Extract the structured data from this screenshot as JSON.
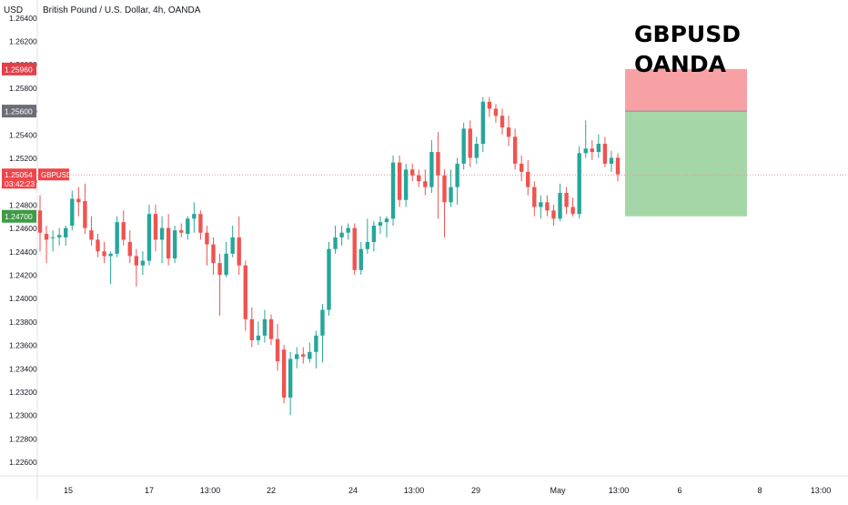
{
  "header": {
    "currency": "USD",
    "title": "British Pound / U.S. Dollar, 4h, OANDA"
  },
  "annotation_title": [
    "GBPUSD",
    "OANDA"
  ],
  "colors": {
    "up": "#26a69a",
    "down": "#ef5350",
    "target_zone": "#a5d6a7",
    "stop_zone": "#f7a1a5",
    "current_price_line": "#f08f92",
    "badge_stop": "#e0404a",
    "badge_entry": "#6b6e78",
    "badge_current": "#f0454a",
    "badge_target": "#3f9b45"
  },
  "chart_data": {
    "type": "candlestick",
    "title": "British Pound / U.S. Dollar, 4h, OANDA",
    "symbol": "GBPUSD",
    "ylim": [
      1.2248,
      1.2655
    ],
    "y_ticks": [
      1.264,
      1.262,
      1.26,
      1.258,
      1.256,
      1.254,
      1.252,
      1.25,
      1.248,
      1.246,
      1.244,
      1.242,
      1.24,
      1.238,
      1.236,
      1.234,
      1.232,
      1.23,
      1.228,
      1.226
    ],
    "x_ticks": [
      "15",
      "17",
      "13:00",
      "22",
      "24",
      "13:00",
      "29",
      "May",
      "13:00",
      "6",
      "8",
      "13:00"
    ],
    "candles": [
      {
        "o": 1.2475,
        "h": 1.2488,
        "l": 1.244,
        "c": 1.2456
      },
      {
        "o": 1.2455,
        "h": 1.2462,
        "l": 1.243,
        "c": 1.245
      },
      {
        "o": 1.2452,
        "h": 1.2458,
        "l": 1.244,
        "c": 1.2452
      },
      {
        "o": 1.2452,
        "h": 1.246,
        "l": 1.2445,
        "c": 1.2454
      },
      {
        "o": 1.2452,
        "h": 1.2462,
        "l": 1.2445,
        "c": 1.246
      },
      {
        "o": 1.2462,
        "h": 1.2492,
        "l": 1.2458,
        "c": 1.2485
      },
      {
        "o": 1.2485,
        "h": 1.2495,
        "l": 1.247,
        "c": 1.2482
      },
      {
        "o": 1.2483,
        "h": 1.2498,
        "l": 1.2455,
        "c": 1.246
      },
      {
        "o": 1.2458,
        "h": 1.247,
        "l": 1.2445,
        "c": 1.245
      },
      {
        "o": 1.245,
        "h": 1.2455,
        "l": 1.2435,
        "c": 1.244
      },
      {
        "o": 1.244,
        "h": 1.2448,
        "l": 1.243,
        "c": 1.2436
      },
      {
        "o": 1.2436,
        "h": 1.244,
        "l": 1.2412,
        "c": 1.2438
      },
      {
        "o": 1.2438,
        "h": 1.247,
        "l": 1.2435,
        "c": 1.2465
      },
      {
        "o": 1.2465,
        "h": 1.2475,
        "l": 1.2445,
        "c": 1.245
      },
      {
        "o": 1.2448,
        "h": 1.2458,
        "l": 1.243,
        "c": 1.2436
      },
      {
        "o": 1.2436,
        "h": 1.2442,
        "l": 1.241,
        "c": 1.2428
      },
      {
        "o": 1.2428,
        "h": 1.244,
        "l": 1.242,
        "c": 1.2432
      },
      {
        "o": 1.2432,
        "h": 1.248,
        "l": 1.2428,
        "c": 1.2472
      },
      {
        "o": 1.2472,
        "h": 1.248,
        "l": 1.244,
        "c": 1.245
      },
      {
        "o": 1.245,
        "h": 1.247,
        "l": 1.243,
        "c": 1.246
      },
      {
        "o": 1.246,
        "h": 1.2472,
        "l": 1.2428,
        "c": 1.2434
      },
      {
        "o": 1.2434,
        "h": 1.2462,
        "l": 1.243,
        "c": 1.2458
      },
      {
        "o": 1.2458,
        "h": 1.2464,
        "l": 1.2452,
        "c": 1.2456
      },
      {
        "o": 1.2455,
        "h": 1.247,
        "l": 1.245,
        "c": 1.2468
      },
      {
        "o": 1.2468,
        "h": 1.2482,
        "l": 1.2456,
        "c": 1.2472
      },
      {
        "o": 1.2472,
        "h": 1.2475,
        "l": 1.245,
        "c": 1.2456
      },
      {
        "o": 1.2456,
        "h": 1.2462,
        "l": 1.2428,
        "c": 1.2446
      },
      {
        "o": 1.2446,
        "h": 1.2452,
        "l": 1.242,
        "c": 1.243
      },
      {
        "o": 1.243,
        "h": 1.2438,
        "l": 1.2385,
        "c": 1.242
      },
      {
        "o": 1.242,
        "h": 1.2448,
        "l": 1.2418,
        "c": 1.2438
      },
      {
        "o": 1.2438,
        "h": 1.2462,
        "l": 1.2435,
        "c": 1.2452
      },
      {
        "o": 1.2452,
        "h": 1.247,
        "l": 1.242,
        "c": 1.2428
      },
      {
        "o": 1.2428,
        "h": 1.2432,
        "l": 1.2372,
        "c": 1.2382
      },
      {
        "o": 1.2382,
        "h": 1.2392,
        "l": 1.2358,
        "c": 1.2364
      },
      {
        "o": 1.2364,
        "h": 1.238,
        "l": 1.236,
        "c": 1.2368
      },
      {
        "o": 1.2368,
        "h": 1.239,
        "l": 1.2362,
        "c": 1.2382
      },
      {
        "o": 1.2382,
        "h": 1.2386,
        "l": 1.236,
        "c": 1.2365
      },
      {
        "o": 1.2365,
        "h": 1.2378,
        "l": 1.2338,
        "c": 1.2346
      },
      {
        "o": 1.2356,
        "h": 1.236,
        "l": 1.231,
        "c": 1.2315
      },
      {
        "o": 1.2315,
        "h": 1.2354,
        "l": 1.23,
        "c": 1.2348
      },
      {
        "o": 1.2348,
        "h": 1.2358,
        "l": 1.234,
        "c": 1.2352
      },
      {
        "o": 1.2352,
        "h": 1.2358,
        "l": 1.2344,
        "c": 1.235
      },
      {
        "o": 1.2348,
        "h": 1.2362,
        "l": 1.2345,
        "c": 1.2354
      },
      {
        "o": 1.2354,
        "h": 1.2372,
        "l": 1.234,
        "c": 1.2368
      },
      {
        "o": 1.2368,
        "h": 1.2395,
        "l": 1.2345,
        "c": 1.239
      },
      {
        "o": 1.239,
        "h": 1.2448,
        "l": 1.2385,
        "c": 1.2442
      },
      {
        "o": 1.2442,
        "h": 1.2462,
        "l": 1.2438,
        "c": 1.2452
      },
      {
        "o": 1.2452,
        "h": 1.2462,
        "l": 1.2445,
        "c": 1.2456
      },
      {
        "o": 1.2456,
        "h": 1.2464,
        "l": 1.245,
        "c": 1.246
      },
      {
        "o": 1.246,
        "h": 1.2464,
        "l": 1.242,
        "c": 1.2424
      },
      {
        "o": 1.2424,
        "h": 1.2448,
        "l": 1.242,
        "c": 1.2442
      },
      {
        "o": 1.2442,
        "h": 1.2468,
        "l": 1.2438,
        "c": 1.2448
      },
      {
        "o": 1.2448,
        "h": 1.2466,
        "l": 1.244,
        "c": 1.2462
      },
      {
        "o": 1.2462,
        "h": 1.247,
        "l": 1.2455,
        "c": 1.2465
      },
      {
        "o": 1.2465,
        "h": 1.247,
        "l": 1.2452,
        "c": 1.2468
      },
      {
        "o": 1.2468,
        "h": 1.2522,
        "l": 1.2462,
        "c": 1.2516
      },
      {
        "o": 1.2516,
        "h": 1.2522,
        "l": 1.2478,
        "c": 1.2484
      },
      {
        "o": 1.2484,
        "h": 1.2515,
        "l": 1.2478,
        "c": 1.251
      },
      {
        "o": 1.251,
        "h": 1.2515,
        "l": 1.25,
        "c": 1.2505
      },
      {
        "o": 1.2505,
        "h": 1.251,
        "l": 1.2495,
        "c": 1.25
      },
      {
        "o": 1.25,
        "h": 1.251,
        "l": 1.2488,
        "c": 1.2495
      },
      {
        "o": 1.2495,
        "h": 1.2535,
        "l": 1.249,
        "c": 1.2525
      },
      {
        "o": 1.2525,
        "h": 1.2542,
        "l": 1.2468,
        "c": 1.2505
      },
      {
        "o": 1.2505,
        "h": 1.251,
        "l": 1.2452,
        "c": 1.2482
      },
      {
        "o": 1.2482,
        "h": 1.251,
        "l": 1.2478,
        "c": 1.2495
      },
      {
        "o": 1.2495,
        "h": 1.252,
        "l": 1.248,
        "c": 1.2515
      },
      {
        "o": 1.2515,
        "h": 1.255,
        "l": 1.251,
        "c": 1.2545
      },
      {
        "o": 1.2545,
        "h": 1.2552,
        "l": 1.2512,
        "c": 1.252
      },
      {
        "o": 1.252,
        "h": 1.2538,
        "l": 1.2515,
        "c": 1.2532
      },
      {
        "o": 1.2532,
        "h": 1.2572,
        "l": 1.2525,
        "c": 1.2568
      },
      {
        "o": 1.2568,
        "h": 1.2572,
        "l": 1.2555,
        "c": 1.2562
      },
      {
        "o": 1.2562,
        "h": 1.2566,
        "l": 1.255,
        "c": 1.2556
      },
      {
        "o": 1.2556,
        "h": 1.2562,
        "l": 1.254,
        "c": 1.2546
      },
      {
        "o": 1.2546,
        "h": 1.2556,
        "l": 1.253,
        "c": 1.2538
      },
      {
        "o": 1.2538,
        "h": 1.2545,
        "l": 1.251,
        "c": 1.2515
      },
      {
        "o": 1.2515,
        "h": 1.2522,
        "l": 1.25,
        "c": 1.2508
      },
      {
        "o": 1.2508,
        "h": 1.2518,
        "l": 1.2488,
        "c": 1.2495
      },
      {
        "o": 1.2495,
        "h": 1.25,
        "l": 1.247,
        "c": 1.2478
      },
      {
        "o": 1.2478,
        "h": 1.2488,
        "l": 1.2468,
        "c": 1.2482
      },
      {
        "o": 1.2482,
        "h": 1.2488,
        "l": 1.247,
        "c": 1.2475
      },
      {
        "o": 1.2475,
        "h": 1.248,
        "l": 1.2462,
        "c": 1.2468
      },
      {
        "o": 1.2468,
        "h": 1.2498,
        "l": 1.2466,
        "c": 1.249
      },
      {
        "o": 1.249,
        "h": 1.2495,
        "l": 1.2472,
        "c": 1.2478
      },
      {
        "o": 1.2478,
        "h": 1.2486,
        "l": 1.247,
        "c": 1.2472
      },
      {
        "o": 1.2472,
        "h": 1.253,
        "l": 1.2468,
        "c": 1.2524
      },
      {
        "o": 1.2524,
        "h": 1.2552,
        "l": 1.252,
        "c": 1.2528
      },
      {
        "o": 1.2528,
        "h": 1.2535,
        "l": 1.2518,
        "c": 1.2525
      },
      {
        "o": 1.2525,
        "h": 1.254,
        "l": 1.252,
        "c": 1.2532
      },
      {
        "o": 1.2532,
        "h": 1.2538,
        "l": 1.2512,
        "c": 1.2515
      },
      {
        "o": 1.2515,
        "h": 1.2526,
        "l": 1.2508,
        "c": 1.252
      },
      {
        "o": 1.252,
        "h": 1.2524,
        "l": 1.25,
        "c": 1.2506
      }
    ],
    "current_price": 1.25054,
    "price_labels": [
      {
        "value": 1.2596,
        "text": "1.25960",
        "role": "stop"
      },
      {
        "value": 1.256,
        "text": "1.25600",
        "role": "entry"
      },
      {
        "value": 1.25054,
        "text": "1.25054",
        "sub": "03:42:23",
        "tag": "GBPUSD",
        "role": "current"
      },
      {
        "value": 1.247,
        "text": "1.24700",
        "role": "target"
      }
    ],
    "position": {
      "side": "short",
      "entry": 1.256,
      "stop": 1.2596,
      "target": 1.247
    }
  }
}
